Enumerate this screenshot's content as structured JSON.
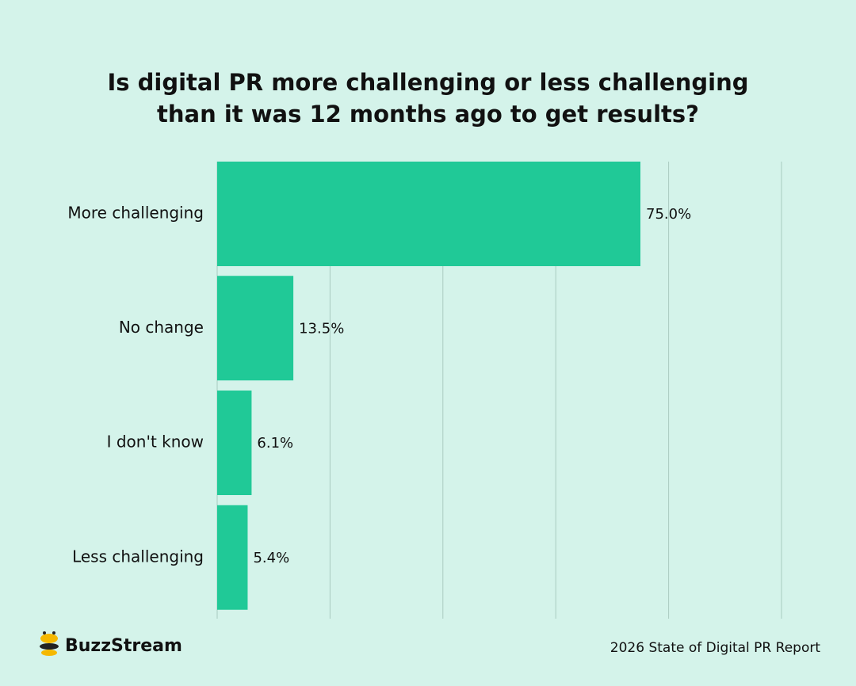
{
  "chart_data": {
    "type": "bar",
    "orientation": "horizontal",
    "title": "Is digital PR more challenging or less challenging than it was 12 months ago to get results?",
    "categories": [
      "More challenging",
      "No change",
      "I don't know",
      "Less challenging"
    ],
    "values": [
      75.0,
      13.5,
      6.1,
      5.4
    ],
    "value_labels": [
      "75.0%",
      "13.5%",
      "6.1%",
      "5.4%"
    ],
    "color": "#20c997",
    "xlim": [
      0,
      100
    ],
    "xticks": [
      0,
      20,
      40,
      60,
      80,
      100
    ],
    "grid": true
  },
  "footer": {
    "brand": "BuzzStream",
    "source": "2026 State of Digital PR Report"
  }
}
